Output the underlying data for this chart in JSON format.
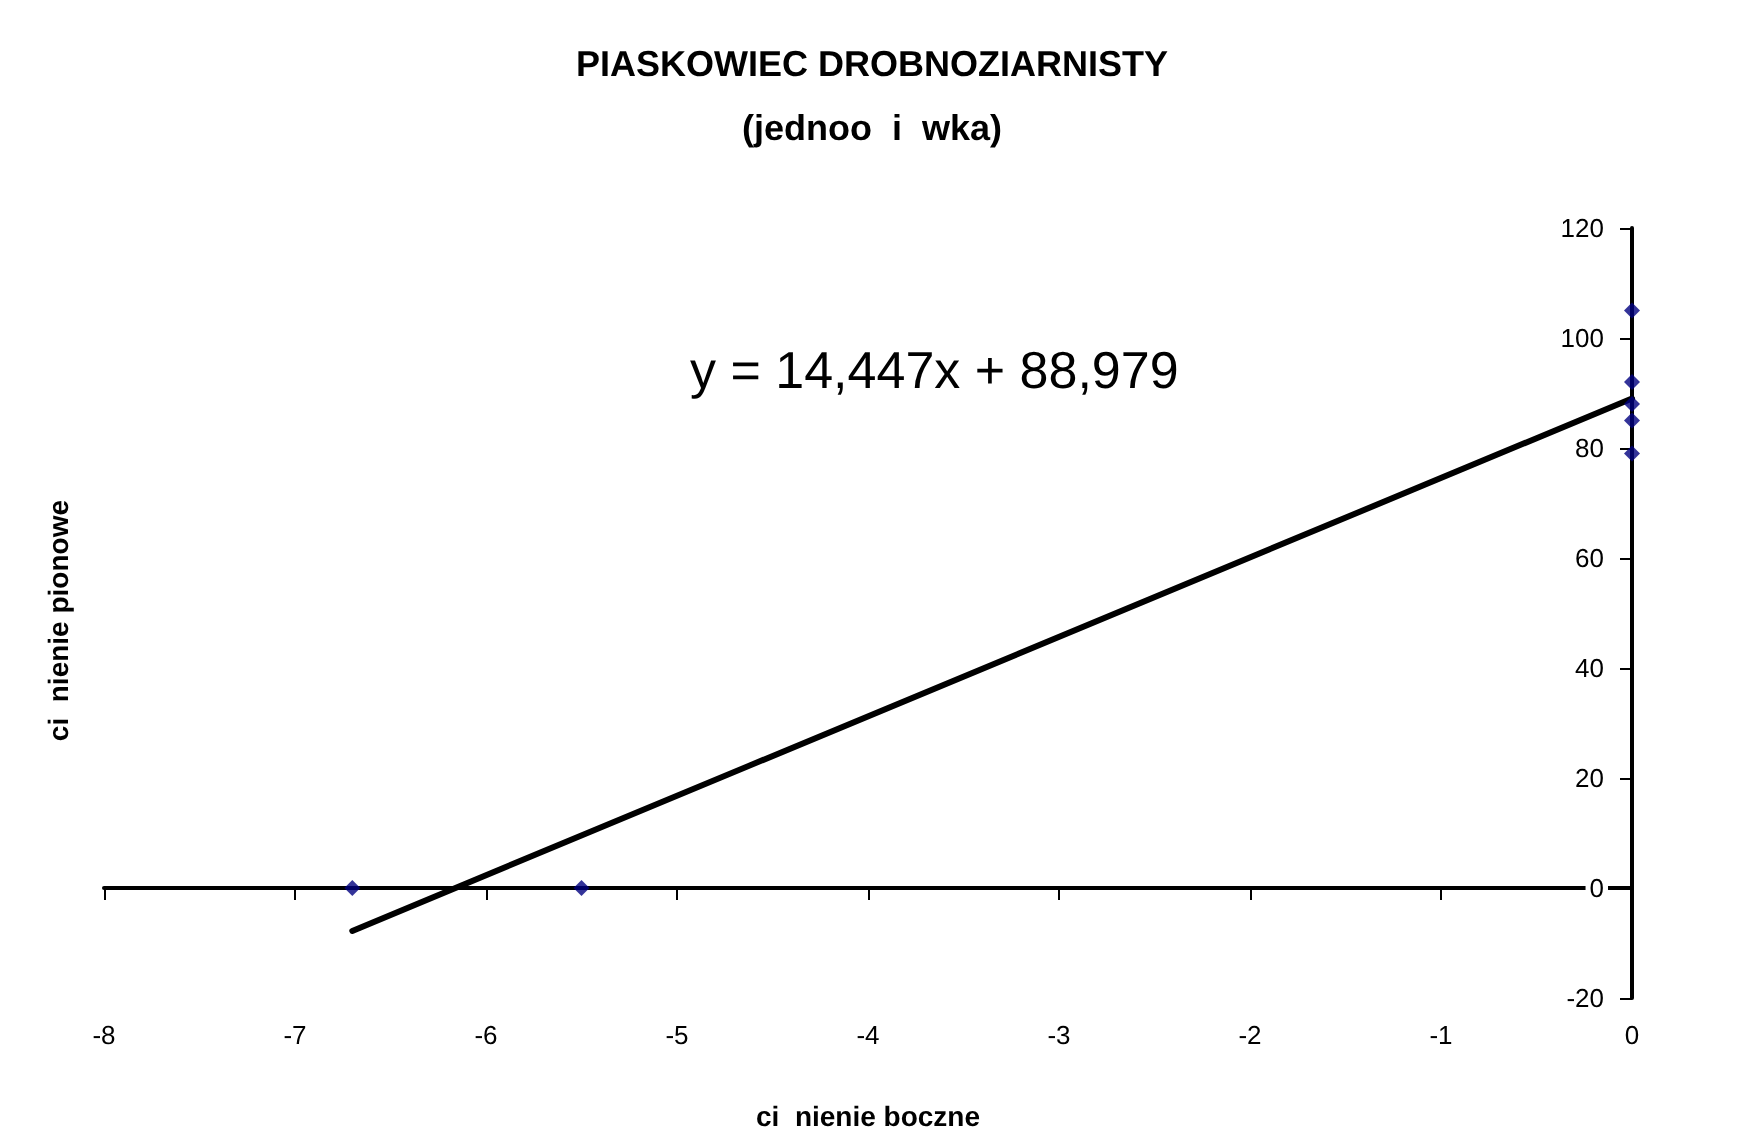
{
  "chart_data": {
    "type": "scatter",
    "title": "PIASKOWIEC DROBNOZIARNISTY",
    "subtitle": "(jednoo  i  wka)",
    "xlabel": "ci  nienie boczne",
    "ylabel": "ci  nienie pionowe",
    "annotations": [
      "y = 14,447x + 88,979"
    ],
    "series": [
      {
        "marker": "diamond",
        "color": "#000080",
        "x": [
          -6.7,
          -5.5,
          0,
          0,
          0,
          0,
          0
        ],
        "values": [
          0,
          0,
          105,
          92,
          88,
          85,
          79
        ]
      },
      {
        "type": "line",
        "color": "#000000",
        "x": [
          -6.7,
          0
        ],
        "values": [
          -7.8,
          89
        ]
      }
    ],
    "xlim": [
      -8,
      0
    ],
    "xticks": [
      -8,
      -7,
      -6,
      -5,
      -4,
      -3,
      -2,
      -1,
      0
    ],
    "ylim": [
      -20,
      120
    ],
    "yticks": [
      -20,
      0,
      20,
      40,
      60,
      80,
      100,
      120
    ],
    "tick_labels": "xy"
  }
}
